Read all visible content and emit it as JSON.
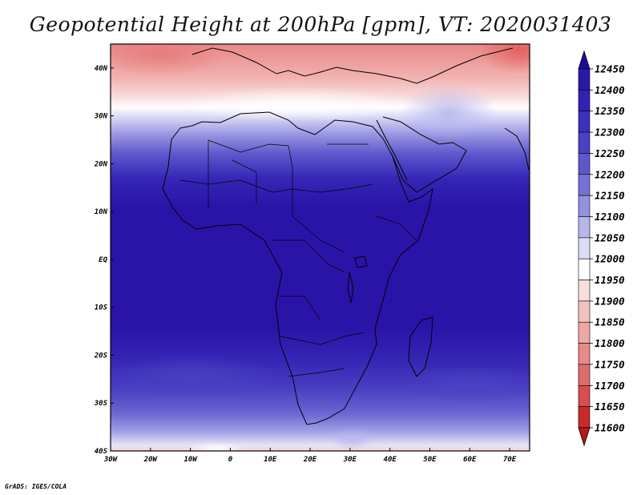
{
  "title": "Geopotential Height at 200hPa [gpm], VT: 2020031403",
  "footer": "GrADS: IGES/COLA",
  "map": {
    "lon_range": [
      -30,
      75
    ],
    "lat_range": [
      -40,
      45
    ],
    "lon_ticks": [
      {
        "value": -30,
        "label": "30W"
      },
      {
        "value": -20,
        "label": "20W"
      },
      {
        "value": -10,
        "label": "10W"
      },
      {
        "value": 0,
        "label": "0"
      },
      {
        "value": 10,
        "label": "10E"
      },
      {
        "value": 20,
        "label": "20E"
      },
      {
        "value": 30,
        "label": "30E"
      },
      {
        "value": 40,
        "label": "40E"
      },
      {
        "value": 50,
        "label": "50E"
      },
      {
        "value": 60,
        "label": "60E"
      },
      {
        "value": 70,
        "label": "70E"
      }
    ],
    "lat_ticks": [
      {
        "value": 40,
        "label": "40N"
      },
      {
        "value": 30,
        "label": "30N"
      },
      {
        "value": 20,
        "label": "20N"
      },
      {
        "value": 10,
        "label": "10N"
      },
      {
        "value": 0,
        "label": "EQ"
      },
      {
        "value": -10,
        "label": "10S"
      },
      {
        "value": -20,
        "label": "20S"
      },
      {
        "value": -30,
        "label": "30S"
      },
      {
        "value": -40,
        "label": "40S"
      }
    ]
  },
  "colorbar": {
    "levels": [
      12450,
      12400,
      12350,
      12300,
      12250,
      12200,
      12150,
      12100,
      12050,
      12000,
      11950,
      11900,
      11850,
      11800,
      11750,
      11700,
      11650,
      11600
    ],
    "colors": [
      "#1c0c9a",
      "#2a1aa8",
      "#3222b4",
      "#3a30bc",
      "#4a42c4",
      "#5c58cc",
      "#7472d6",
      "#9492e0",
      "#b6b6ec",
      "#dcdcf6",
      "#ffffff",
      "#fadede",
      "#f4c2c2",
      "#eea6a6",
      "#e68a8a",
      "#de6e6e",
      "#d64e4e",
      "#c82a2a",
      "#b81818"
    ]
  }
}
